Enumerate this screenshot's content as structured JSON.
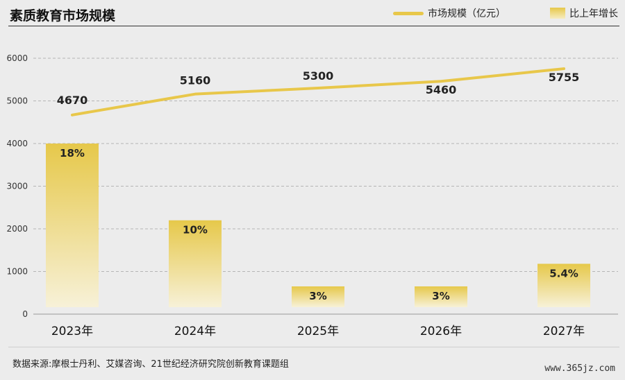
{
  "header": {
    "title": "素质教育市场规模"
  },
  "legend": {
    "line_label": "市场规模（亿元）",
    "bar_label": "比上年增长"
  },
  "footer": {
    "source": "数据来源:摩根士丹利、艾媒咨询、21世纪经济研究院创新教育课题组",
    "watermark": "www.365jz.com"
  },
  "colors": {
    "line": "#e8c74a",
    "bar_top": "#e6c84a",
    "bar_bottom": "#f7f1d8",
    "grid": "#b5b5b5"
  },
  "chart_data": {
    "type": "bar+line",
    "categories": [
      "2023年",
      "2024年",
      "2025年",
      "2026年",
      "2027年"
    ],
    "yticks": [
      "0",
      "1000",
      "2000",
      "3000",
      "4000",
      "5000",
      "6000"
    ],
    "ylim": [
      0,
      6000
    ],
    "grid": true,
    "series": [
      {
        "name": "市场规模（亿元）",
        "type": "line",
        "values": [
          4670,
          5160,
          5300,
          5460,
          5755
        ],
        "labels": [
          "4670",
          "5160",
          "5300",
          "5460",
          "5755"
        ]
      },
      {
        "name": "比上年增长",
        "type": "bar",
        "values": [
          4000,
          2200,
          650,
          650,
          1180
        ],
        "labels": [
          "18%",
          "10%",
          "3%",
          "3%",
          "5.4%"
        ]
      }
    ]
  }
}
